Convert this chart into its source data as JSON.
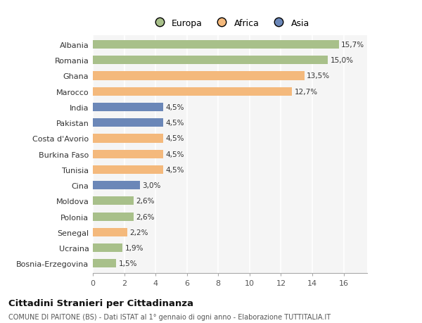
{
  "countries": [
    "Albania",
    "Romania",
    "Ghana",
    "Marocco",
    "India",
    "Pakistan",
    "Costa d'Avorio",
    "Burkina Faso",
    "Tunisia",
    "Cina",
    "Moldova",
    "Polonia",
    "Senegal",
    "Ucraina",
    "Bosnia-Erzegovina"
  ],
  "values": [
    15.7,
    15.0,
    13.5,
    12.7,
    4.5,
    4.5,
    4.5,
    4.5,
    4.5,
    3.0,
    2.6,
    2.6,
    2.2,
    1.9,
    1.5
  ],
  "labels": [
    "15,7%",
    "15,0%",
    "13,5%",
    "12,7%",
    "4,5%",
    "4,5%",
    "4,5%",
    "4,5%",
    "4,5%",
    "3,0%",
    "2,6%",
    "2,6%",
    "2,2%",
    "1,9%",
    "1,5%"
  ],
  "continents": [
    "Europa",
    "Europa",
    "Africa",
    "Africa",
    "Asia",
    "Asia",
    "Africa",
    "Africa",
    "Africa",
    "Asia",
    "Europa",
    "Europa",
    "Africa",
    "Europa",
    "Europa"
  ],
  "colors": {
    "Europa": "#a8c08a",
    "Africa": "#f4b97c",
    "Asia": "#6b87b8"
  },
  "legend_labels": [
    "Europa",
    "Africa",
    "Asia"
  ],
  "title": "Cittadini Stranieri per Cittadinanza",
  "subtitle": "COMUNE DI PAITONE (BS) - Dati ISTAT al 1° gennaio di ogni anno - Elaborazione TUTTITALIA.IT",
  "xlabel_ticks": [
    0,
    2,
    4,
    6,
    8,
    10,
    12,
    14,
    16
  ],
  "xlim": [
    0,
    17.5
  ],
  "bg_color": "#f5f5f5",
  "grid_color": "#ffffff"
}
